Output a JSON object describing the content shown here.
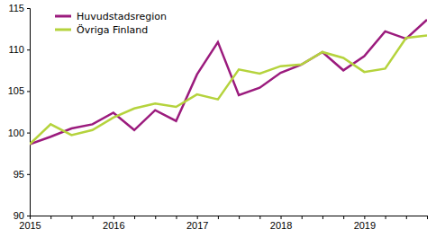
{
  "chart_data": {
    "type": "line",
    "categories": [
      "2015",
      null,
      null,
      null,
      "2016",
      null,
      null,
      null,
      "2017",
      null,
      null,
      null,
      "2018",
      null,
      null,
      null,
      "2019",
      null,
      null,
      null
    ],
    "series": [
      {
        "name": "Huvudstadsregion",
        "color": "#9b1b7d",
        "values": [
          98.6,
          99.5,
          100.5,
          101.0,
          102.4,
          100.3,
          102.7,
          101.4,
          107.0,
          110.9,
          104.5,
          105.4,
          107.2,
          108.2,
          109.7,
          107.5,
          109.2,
          112.2,
          111.3,
          113.6
        ]
      },
      {
        "name": "Övriga Finland",
        "color": "#b5d33d",
        "values": [
          98.6,
          101.0,
          99.7,
          100.3,
          101.8,
          102.9,
          103.5,
          103.1,
          104.6,
          104.0,
          107.6,
          107.1,
          108.0,
          108.2,
          109.7,
          109.0,
          107.3,
          107.7,
          111.4,
          111.7
        ]
      }
    ],
    "ylim": [
      90,
      115
    ],
    "yticks": [
      90,
      95,
      100,
      105,
      110,
      115
    ],
    "grid": false,
    "legend": "upper left"
  }
}
